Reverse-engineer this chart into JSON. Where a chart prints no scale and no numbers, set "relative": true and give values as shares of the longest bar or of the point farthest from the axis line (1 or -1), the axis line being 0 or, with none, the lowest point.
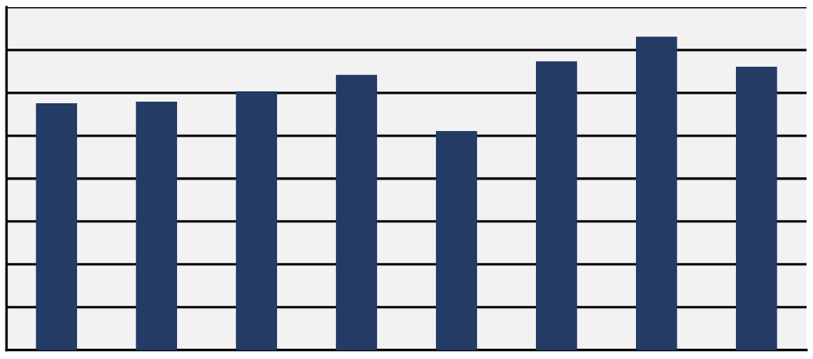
{
  "chart_data": {
    "type": "bar",
    "relative": true,
    "categories": [
      null,
      null,
      null,
      null,
      null,
      null,
      null,
      null
    ],
    "values": [
      0.787,
      0.792,
      0.825,
      0.878,
      0.698,
      0.921,
      1.0,
      0.904
    ],
    "color": "#243b66",
    "grid": "y"
  }
}
